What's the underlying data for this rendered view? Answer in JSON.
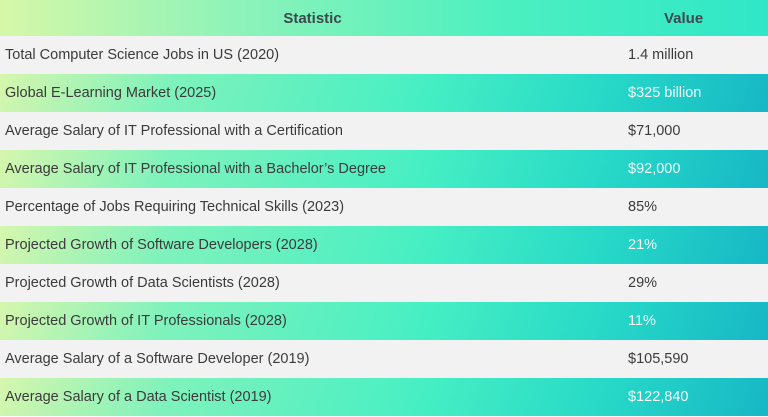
{
  "table": {
    "headers": {
      "statistic": "Statistic",
      "value": "Value"
    },
    "rows": [
      {
        "statistic": "Total Computer Science Jobs in US (2020)",
        "value": "1.4 million"
      },
      {
        "statistic": "Global E-Learning Market (2025)",
        "value": "$325 billion"
      },
      {
        "statistic": "Average Salary of IT Professional with a Certification",
        "value": "$71,000"
      },
      {
        "statistic": "Average Salary of IT Professional with a Bachelor’s Degree",
        "value": "$92,000"
      },
      {
        "statistic": "Percentage of Jobs Requiring Technical Skills (2023)",
        "value": "85%"
      },
      {
        "statistic": "Projected Growth of Software Developers (2028)",
        "value": "21%"
      },
      {
        "statistic": "Projected Growth of Data Scientists (2028)",
        "value": "29%"
      },
      {
        "statistic": "Projected Growth of IT Professionals (2028)",
        "value": "11%"
      },
      {
        "statistic": "Average Salary of a Software Developer (2019)",
        "value": "$105,590"
      },
      {
        "statistic": "Average Salary of a Data Scientist (2019)",
        "value": "$122,840"
      }
    ]
  },
  "colors": {
    "header_gradient_start": "#d7f7a8",
    "header_gradient_end": "#2fe7c7",
    "row_plain": "#f2f2f2",
    "row_gradient_start": "#d6f6ad",
    "row_gradient_end": "#16b7c6",
    "text": "#3b3b3b"
  }
}
